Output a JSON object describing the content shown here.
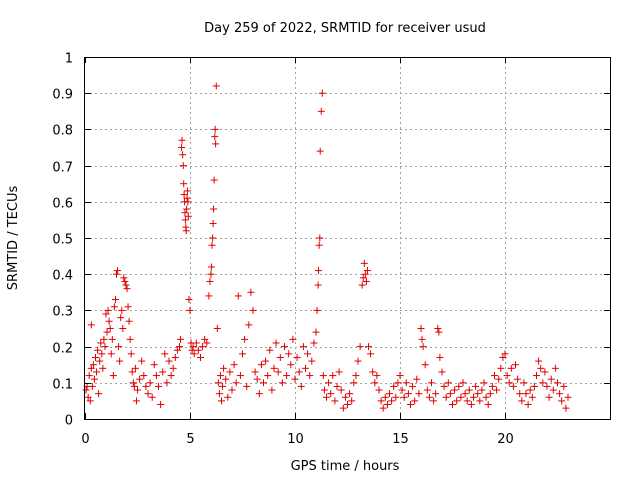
{
  "chart_data": {
    "type": "scatter",
    "title": "Day 259 of 2022, SRMTID for receiver usud",
    "xlabel": "GPS time / hours",
    "ylabel": "SRMTID / TECUs",
    "xlim": [
      0,
      25
    ],
    "ylim": [
      0,
      1
    ],
    "x_ticks": [
      0,
      5,
      10,
      15,
      20
    ],
    "y_ticks": [
      0,
      0.1,
      0.2,
      0.3,
      0.4,
      0.5,
      0.6,
      0.7,
      0.8,
      0.9,
      1
    ],
    "x_tick_labels": [
      "0",
      "5",
      "10",
      "15",
      "20"
    ],
    "y_tick_labels": [
      "0",
      "0.1",
      "0.2",
      "0.3",
      "0.4",
      "0.5",
      "0.6",
      "0.7",
      "0.8",
      "0.9",
      "1"
    ],
    "grid": true,
    "marker": "+",
    "marker_color": "#e00000",
    "series": [
      {
        "points": [
          [
            0.05,
            0.08
          ],
          [
            0.1,
            0.09
          ],
          [
            0.15,
            0.06
          ],
          [
            0.2,
            0.12
          ],
          [
            0.25,
            0.05
          ],
          [
            0.3,
            0.14
          ],
          [
            0.3,
            0.26
          ],
          [
            0.35,
            0.09
          ],
          [
            0.4,
            0.15
          ],
          [
            0.45,
            0.11
          ],
          [
            0.5,
            0.17
          ],
          [
            0.55,
            0.13
          ],
          [
            0.6,
            0.19
          ],
          [
            0.65,
            0.07
          ],
          [
            0.7,
            0.16
          ],
          [
            0.75,
            0.21
          ],
          [
            0.8,
            0.18
          ],
          [
            0.85,
            0.14
          ],
          [
            0.9,
            0.22
          ],
          [
            0.95,
            0.2
          ],
          [
            1.0,
            0.29
          ],
          [
            1.05,
            0.24
          ],
          [
            1.1,
            0.3
          ],
          [
            1.15,
            0.27
          ],
          [
            1.2,
            0.25
          ],
          [
            1.25,
            0.18
          ],
          [
            1.3,
            0.22
          ],
          [
            1.35,
            0.12
          ],
          [
            1.4,
            0.31
          ],
          [
            1.45,
            0.33
          ],
          [
            1.5,
            0.4
          ],
          [
            1.55,
            0.41
          ],
          [
            1.6,
            0.2
          ],
          [
            1.65,
            0.16
          ],
          [
            1.7,
            0.28
          ],
          [
            1.75,
            0.3
          ],
          [
            1.8,
            0.25
          ],
          [
            1.85,
            0.39
          ],
          [
            1.9,
            0.38
          ],
          [
            1.95,
            0.37
          ],
          [
            2.0,
            0.36
          ],
          [
            2.05,
            0.31
          ],
          [
            2.1,
            0.27
          ],
          [
            2.15,
            0.22
          ],
          [
            2.2,
            0.18
          ],
          [
            2.25,
            0.13
          ],
          [
            2.3,
            0.1
          ],
          [
            2.35,
            0.09
          ],
          [
            2.4,
            0.14
          ],
          [
            2.45,
            0.05
          ],
          [
            2.5,
            0.08
          ],
          [
            2.6,
            0.11
          ],
          [
            2.7,
            0.16
          ],
          [
            2.8,
            0.12
          ],
          [
            2.9,
            0.09
          ],
          [
            3.0,
            0.07
          ],
          [
            3.1,
            0.1
          ],
          [
            3.2,
            0.06
          ],
          [
            3.3,
            0.15
          ],
          [
            3.4,
            0.12
          ],
          [
            3.5,
            0.09
          ],
          [
            3.6,
            0.04
          ],
          [
            3.7,
            0.13
          ],
          [
            3.8,
            0.18
          ],
          [
            3.9,
            0.1
          ],
          [
            4.0,
            0.16
          ],
          [
            4.1,
            0.12
          ],
          [
            4.2,
            0.14
          ],
          [
            4.3,
            0.17
          ],
          [
            4.4,
            0.19
          ],
          [
            4.5,
            0.2
          ],
          [
            4.55,
            0.22
          ],
          [
            4.6,
            0.75
          ],
          [
            4.62,
            0.77
          ],
          [
            4.65,
            0.73
          ],
          [
            4.68,
            0.7
          ],
          [
            4.7,
            0.65
          ],
          [
            4.72,
            0.62
          ],
          [
            4.74,
            0.6
          ],
          [
            4.76,
            0.57
          ],
          [
            4.78,
            0.55
          ],
          [
            4.8,
            0.53
          ],
          [
            4.82,
            0.52
          ],
          [
            4.84,
            0.58
          ],
          [
            4.86,
            0.61
          ],
          [
            4.88,
            0.63
          ],
          [
            4.9,
            0.6
          ],
          [
            4.92,
            0.56
          ],
          [
            4.95,
            0.33
          ],
          [
            5.0,
            0.3
          ],
          [
            5.05,
            0.21
          ],
          [
            5.1,
            0.19
          ],
          [
            5.15,
            0.2
          ],
          [
            5.2,
            0.18
          ],
          [
            5.3,
            0.21
          ],
          [
            5.4,
            0.19
          ],
          [
            5.5,
            0.17
          ],
          [
            5.6,
            0.2
          ],
          [
            5.7,
            0.22
          ],
          [
            5.8,
            0.21
          ],
          [
            5.9,
            0.34
          ],
          [
            5.95,
            0.38
          ],
          [
            6.0,
            0.4
          ],
          [
            6.02,
            0.42
          ],
          [
            6.05,
            0.48
          ],
          [
            6.08,
            0.5
          ],
          [
            6.1,
            0.54
          ],
          [
            6.12,
            0.58
          ],
          [
            6.15,
            0.66
          ],
          [
            6.18,
            0.78
          ],
          [
            6.2,
            0.8
          ],
          [
            6.22,
            0.76
          ],
          [
            6.25,
            0.92
          ],
          [
            6.3,
            0.25
          ],
          [
            6.35,
            0.1
          ],
          [
            6.4,
            0.07
          ],
          [
            6.45,
            0.12
          ],
          [
            6.5,
            0.05
          ],
          [
            6.55,
            0.09
          ],
          [
            6.6,
            0.14
          ],
          [
            6.7,
            0.11
          ],
          [
            6.8,
            0.06
          ],
          [
            6.9,
            0.13
          ],
          [
            7.0,
            0.08
          ],
          [
            7.1,
            0.15
          ],
          [
            7.2,
            0.1
          ],
          [
            7.3,
            0.34
          ],
          [
            7.4,
            0.12
          ],
          [
            7.5,
            0.18
          ],
          [
            7.6,
            0.22
          ],
          [
            7.7,
            0.09
          ],
          [
            7.8,
            0.26
          ],
          [
            7.9,
            0.35
          ],
          [
            8.0,
            0.3
          ],
          [
            8.1,
            0.13
          ],
          [
            8.2,
            0.11
          ],
          [
            8.3,
            0.07
          ],
          [
            8.4,
            0.15
          ],
          [
            8.5,
            0.1
          ],
          [
            8.6,
            0.16
          ],
          [
            8.7,
            0.12
          ],
          [
            8.8,
            0.19
          ],
          [
            8.9,
            0.08
          ],
          [
            9.0,
            0.14
          ],
          [
            9.1,
            0.21
          ],
          [
            9.2,
            0.13
          ],
          [
            9.3,
            0.17
          ],
          [
            9.4,
            0.1
          ],
          [
            9.5,
            0.2
          ],
          [
            9.6,
            0.12
          ],
          [
            9.7,
            0.18
          ],
          [
            9.8,
            0.15
          ],
          [
            9.9,
            0.22
          ],
          [
            10.0,
            0.11
          ],
          [
            10.1,
            0.17
          ],
          [
            10.2,
            0.13
          ],
          [
            10.3,
            0.09
          ],
          [
            10.4,
            0.2
          ],
          [
            10.5,
            0.14
          ],
          [
            10.6,
            0.18
          ],
          [
            10.7,
            0.12
          ],
          [
            10.8,
            0.16
          ],
          [
            10.9,
            0.21
          ],
          [
            11.0,
            0.24
          ],
          [
            11.05,
            0.3
          ],
          [
            11.1,
            0.37
          ],
          [
            11.12,
            0.41
          ],
          [
            11.15,
            0.48
          ],
          [
            11.18,
            0.5
          ],
          [
            11.2,
            0.74
          ],
          [
            11.25,
            0.85
          ],
          [
            11.3,
            0.9
          ],
          [
            11.35,
            0.12
          ],
          [
            11.4,
            0.08
          ],
          [
            11.5,
            0.06
          ],
          [
            11.6,
            0.1
          ],
          [
            11.7,
            0.07
          ],
          [
            11.8,
            0.12
          ],
          [
            11.9,
            0.05
          ],
          [
            12.0,
            0.09
          ],
          [
            12.1,
            0.13
          ],
          [
            12.2,
            0.08
          ],
          [
            12.3,
            0.03
          ],
          [
            12.4,
            0.06
          ],
          [
            12.5,
            0.04
          ],
          [
            12.6,
            0.07
          ],
          [
            12.7,
            0.05
          ],
          [
            12.8,
            0.1
          ],
          [
            12.9,
            0.12
          ],
          [
            13.0,
            0.16
          ],
          [
            13.1,
            0.2
          ],
          [
            13.2,
            0.37
          ],
          [
            13.25,
            0.39
          ],
          [
            13.3,
            0.43
          ],
          [
            13.35,
            0.4
          ],
          [
            13.4,
            0.38
          ],
          [
            13.45,
            0.41
          ],
          [
            13.5,
            0.2
          ],
          [
            13.6,
            0.18
          ],
          [
            13.7,
            0.13
          ],
          [
            13.8,
            0.1
          ],
          [
            13.9,
            0.12
          ],
          [
            14.0,
            0.08
          ],
          [
            14.1,
            0.05
          ],
          [
            14.2,
            0.03
          ],
          [
            14.3,
            0.06
          ],
          [
            14.4,
            0.04
          ],
          [
            14.5,
            0.07
          ],
          [
            14.6,
            0.05
          ],
          [
            14.7,
            0.09
          ],
          [
            14.8,
            0.06
          ],
          [
            14.9,
            0.1
          ],
          [
            15.0,
            0.12
          ],
          [
            15.1,
            0.08
          ],
          [
            15.2,
            0.06
          ],
          [
            15.3,
            0.1
          ],
          [
            15.4,
            0.07
          ],
          [
            15.5,
            0.04
          ],
          [
            15.6,
            0.09
          ],
          [
            15.7,
            0.05
          ],
          [
            15.8,
            0.11
          ],
          [
            15.9,
            0.07
          ],
          [
            16.0,
            0.25
          ],
          [
            16.05,
            0.22
          ],
          [
            16.1,
            0.2
          ],
          [
            16.2,
            0.15
          ],
          [
            16.3,
            0.08
          ],
          [
            16.4,
            0.06
          ],
          [
            16.5,
            0.1
          ],
          [
            16.6,
            0.05
          ],
          [
            16.7,
            0.07
          ],
          [
            16.8,
            0.25
          ],
          [
            16.85,
            0.24
          ],
          [
            16.9,
            0.17
          ],
          [
            17.0,
            0.13
          ],
          [
            17.1,
            0.09
          ],
          [
            17.2,
            0.06
          ],
          [
            17.3,
            0.1
          ],
          [
            17.4,
            0.07
          ],
          [
            17.5,
            0.04
          ],
          [
            17.6,
            0.08
          ],
          [
            17.7,
            0.05
          ],
          [
            17.8,
            0.09
          ],
          [
            17.9,
            0.06
          ],
          [
            18.0,
            0.1
          ],
          [
            18.1,
            0.07
          ],
          [
            18.2,
            0.05
          ],
          [
            18.3,
            0.08
          ],
          [
            18.4,
            0.04
          ],
          [
            18.5,
            0.06
          ],
          [
            18.6,
            0.09
          ],
          [
            18.7,
            0.07
          ],
          [
            18.8,
            0.05
          ],
          [
            18.9,
            0.08
          ],
          [
            19.0,
            0.1
          ],
          [
            19.1,
            0.06
          ],
          [
            19.2,
            0.04
          ],
          [
            19.3,
            0.07
          ],
          [
            19.4,
            0.09
          ],
          [
            19.5,
            0.12
          ],
          [
            19.6,
            0.08
          ],
          [
            19.7,
            0.11
          ],
          [
            19.8,
            0.14
          ],
          [
            19.9,
            0.17
          ],
          [
            20.0,
            0.18
          ],
          [
            20.1,
            0.12
          ],
          [
            20.2,
            0.1
          ],
          [
            20.3,
            0.14
          ],
          [
            20.4,
            0.09
          ],
          [
            20.5,
            0.15
          ],
          [
            20.6,
            0.11
          ],
          [
            20.7,
            0.07
          ],
          [
            20.8,
            0.05
          ],
          [
            20.9,
            0.1
          ],
          [
            21.0,
            0.07
          ],
          [
            21.1,
            0.04
          ],
          [
            21.2,
            0.08
          ],
          [
            21.3,
            0.06
          ],
          [
            21.4,
            0.09
          ],
          [
            21.5,
            0.12
          ],
          [
            21.6,
            0.16
          ],
          [
            21.7,
            0.14
          ],
          [
            21.8,
            0.1
          ],
          [
            21.9,
            0.13
          ],
          [
            22.0,
            0.09
          ],
          [
            22.1,
            0.06
          ],
          [
            22.2,
            0.11
          ],
          [
            22.3,
            0.08
          ],
          [
            22.4,
            0.14
          ],
          [
            22.5,
            0.1
          ],
          [
            22.6,
            0.07
          ],
          [
            22.7,
            0.05
          ],
          [
            22.8,
            0.09
          ],
          [
            22.9,
            0.03
          ],
          [
            23.0,
            0.06
          ]
        ]
      }
    ]
  }
}
